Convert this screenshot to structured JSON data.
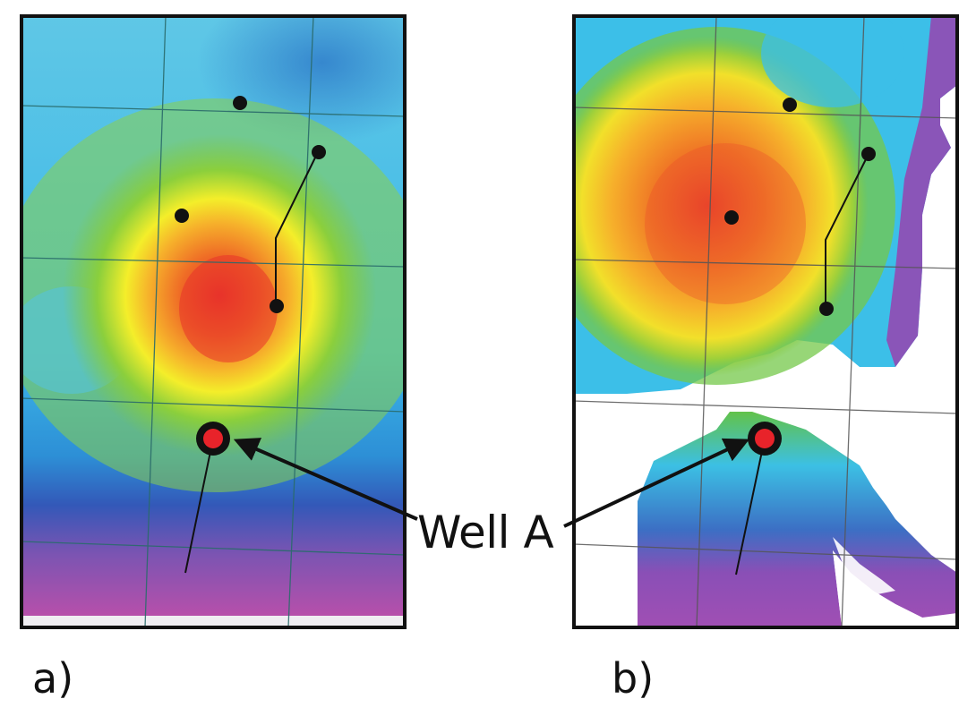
{
  "figure": {
    "panels": [
      {
        "id": "a",
        "label": "a)"
      },
      {
        "id": "b",
        "label": "b)"
      }
    ],
    "callout": {
      "label": "Well A"
    },
    "colors": {
      "map_low": "#a04fb4",
      "map_mid_blue": "#2fb8e8",
      "map_mid_green": "#7ec83f",
      "map_yellow": "#f4ee2a",
      "map_high": "#e8332a",
      "well_marker": "#e8232a",
      "frame": "#111111",
      "grid_line": "#2a6b6b"
    },
    "icons": [
      "well-dot-icon",
      "well-a-marker-icon",
      "arrow-icon"
    ]
  }
}
